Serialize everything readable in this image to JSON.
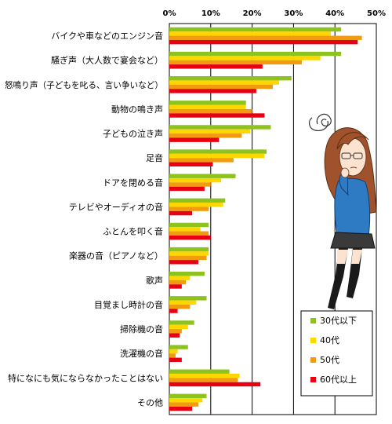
{
  "chart_data": {
    "type": "bar",
    "orientation": "horizontal",
    "categories": [
      "バイクや車などのエンジン音",
      "騒ぎ声（大人数で宴会など）",
      "怒鳴り声（子どもを叱る、言い争いなど）",
      "動物の鳴き声",
      "子どもの泣き声",
      "足音",
      "ドアを閉める音",
      "テレビやオーディオの音",
      "ふとんを叩く音",
      "楽器の音（ピアノなど）",
      "歌声",
      "目覚まし時計の音",
      "掃除機の音",
      "洗濯機の音",
      "特になにも気にならなかったことはない",
      "その他"
    ],
    "series": [
      {
        "name": "30代以下",
        "color": "#8DC21F",
        "values": [
          41.5,
          41.5,
          29.5,
          18.5,
          24.5,
          23.5,
          16.0,
          13.5,
          9.5,
          9.5,
          8.5,
          9.0,
          6.0,
          4.5,
          14.5,
          9.0
        ]
      },
      {
        "name": "40代",
        "color": "#FFD700",
        "values": [
          39.0,
          36.5,
          26.5,
          18.5,
          19.5,
          23.0,
          12.5,
          13.0,
          7.5,
          9.5,
          5.0,
          6.5,
          4.5,
          2.0,
          17.0,
          8.0
        ]
      },
      {
        "name": "50代",
        "color": "#F29B11",
        "values": [
          46.5,
          32.0,
          25.0,
          20.0,
          17.5,
          15.5,
          10.0,
          9.5,
          9.5,
          9.0,
          4.0,
          5.0,
          3.0,
          1.5,
          16.5,
          7.0
        ]
      },
      {
        "name": "60代以上",
        "color": "#E60012",
        "values": [
          45.5,
          22.5,
          21.0,
          23.0,
          12.0,
          10.5,
          8.5,
          5.5,
          10.0,
          7.0,
          3.0,
          2.0,
          2.5,
          3.0,
          22.0,
          5.5
        ]
      }
    ],
    "xticks": [
      "0%",
      "10%",
      "20%",
      "30%",
      "40%",
      "50%"
    ],
    "xlim": [
      0,
      50
    ],
    "grid": true,
    "legend_position": "bottom-right"
  }
}
